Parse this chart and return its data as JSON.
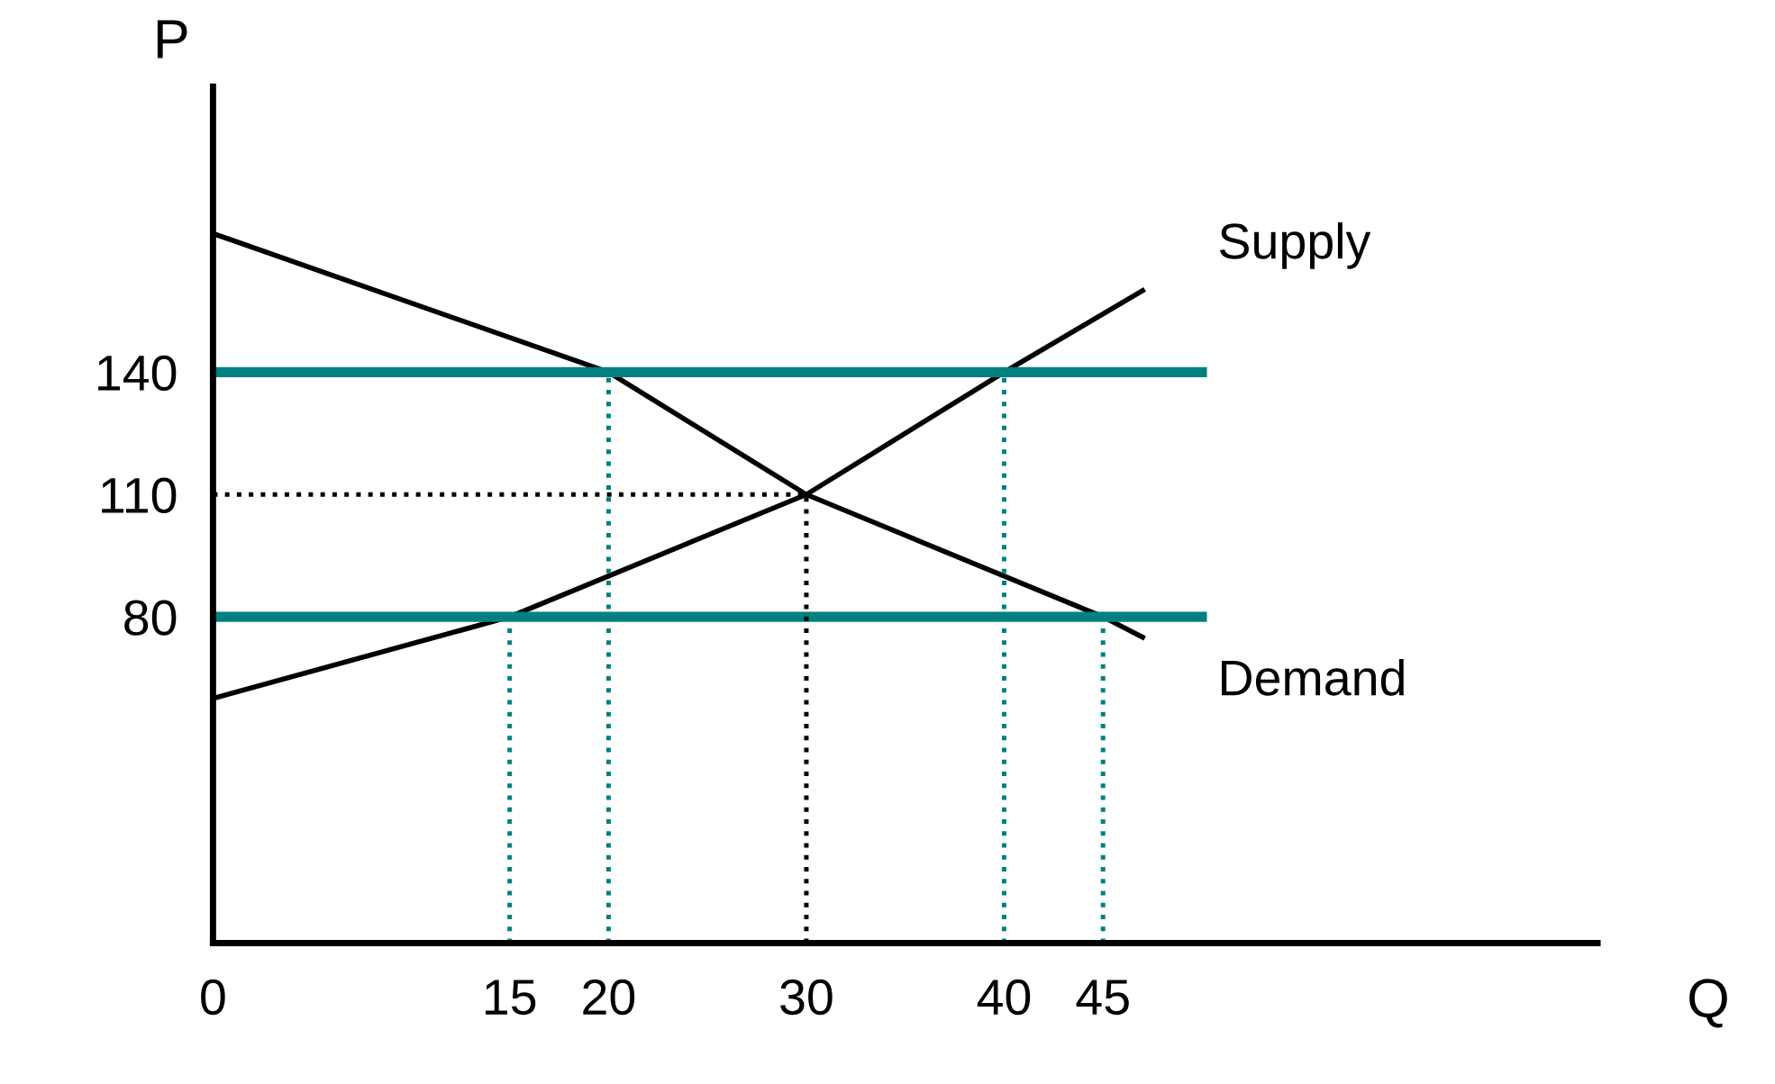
{
  "chart_data": {
    "type": "line",
    "xlabel": "Q",
    "ylabel": "P",
    "xlim": [
      0,
      70
    ],
    "ylim": [
      0,
      210
    ],
    "xticks": [
      0,
      15,
      20,
      30,
      40,
      45
    ],
    "yticks": [
      80,
      110,
      140
    ],
    "grid": false,
    "legend": false,
    "marker": "none",
    "series": [
      {
        "name": "Supply",
        "color": "#000000",
        "x": [
          0,
          15,
          30,
          40,
          47
        ],
        "values": [
          60,
          80,
          110,
          140,
          160
        ],
        "line_style": "solid"
      },
      {
        "name": "Demand",
        "color": "#000000",
        "x": [
          0,
          20,
          30,
          45,
          47
        ],
        "values": [
          174,
          140,
          110,
          80,
          75
        ],
        "line_style": "solid"
      },
      {
        "color": "#008080",
        "x": [
          0,
          50
        ],
        "values": [
          140,
          140
        ],
        "line_style": "solid"
      },
      {
        "color": "#008080",
        "x": [
          0,
          50
        ],
        "values": [
          80,
          80
        ],
        "line_style": "solid"
      },
      {
        "color": "#008080",
        "x": [
          15,
          15
        ],
        "values": [
          0,
          80
        ],
        "line_style": "dotted"
      },
      {
        "color": "#008080",
        "x": [
          20,
          20
        ],
        "values": [
          0,
          140
        ],
        "line_style": "dotted"
      },
      {
        "color": "#008080",
        "x": [
          40,
          40
        ],
        "values": [
          0,
          140
        ],
        "line_style": "dotted"
      },
      {
        "color": "#008080",
        "x": [
          45,
          45
        ],
        "values": [
          0,
          80
        ],
        "line_style": "dotted"
      },
      {
        "color": "#000000",
        "x": [
          30,
          30
        ],
        "values": [
          0,
          110
        ],
        "line_style": "dotted"
      },
      {
        "color": "#000000",
        "x": [
          0,
          30
        ],
        "values": [
          110,
          110
        ],
        "line_style": "dotted"
      }
    ]
  }
}
